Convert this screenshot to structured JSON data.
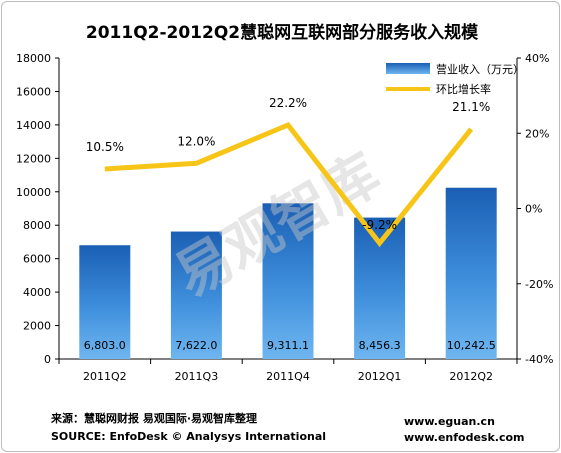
{
  "chart_data": {
    "type": "bar",
    "title": "2011Q2-2012Q2慧聪网互联网部分服务收入规模",
    "categories": [
      "2011Q2",
      "2011Q3",
      "2011Q4",
      "2012Q1",
      "2012Q2"
    ],
    "series": [
      {
        "name": "营业收入（万元）",
        "type": "bar",
        "axis": "left",
        "values": [
          6803.0,
          7622.0,
          9311.1,
          8456.3,
          10242.5
        ],
        "labels": [
          "6,803.0",
          "7,622.0",
          "9,311.1",
          "8,456.3",
          "10,242.5"
        ],
        "color": "#1f63b6"
      },
      {
        "name": "环比增长率",
        "type": "line",
        "axis": "right",
        "values": [
          10.5,
          12.0,
          22.2,
          -9.2,
          21.1
        ],
        "labels": [
          "10.5%",
          "12.0%",
          "22.2%",
          "-9.2%",
          "21.1%"
        ],
        "color": "#f6c517"
      }
    ],
    "y_left": {
      "min": 0,
      "max": 18000,
      "ticks": [
        "0",
        "2000",
        "4000",
        "6000",
        "8000",
        "10000",
        "12000",
        "14000",
        "16000",
        "18000"
      ]
    },
    "y_right": {
      "min": -40,
      "max": 40,
      "ticks": [
        "-40%",
        "-20%",
        "0%",
        "20%",
        "40%"
      ]
    },
    "legend_position": "top-right",
    "grid": false
  },
  "watermark": "易观智库",
  "footer": {
    "source_cn": "来源：慧聪网财报 易观国际·易观智库整理",
    "source_en": "SOURCE: EnfoDesk © Analysys International",
    "url1": "www.eguan.cn",
    "url2": "www.enfodesk.com"
  }
}
